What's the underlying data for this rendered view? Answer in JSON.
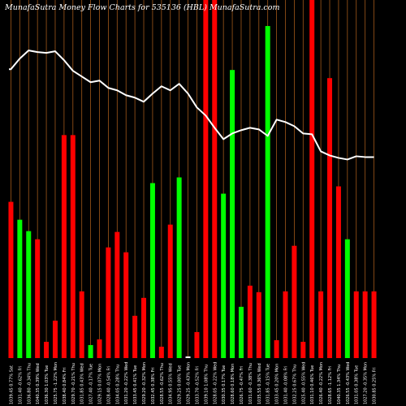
{
  "header": {
    "title": "MunafaSutra  Money Flow  Charts for 535136                    (HBL)  MunafaSutra.com"
  },
  "chart_data": {
    "type": "bar",
    "ylim": [
      0,
      440
    ],
    "line_ylim": [
      0,
      440
    ],
    "grid": "vertical",
    "categories": [
      "1039.45 0.77% Sat",
      "1031.40 -0.62% Fri",
      "1036.80 -0.34% Thu",
      "1040.35 0.39% Wed",
      "1036.30 1.03% Tue",
      "1025.75 -1.22% Mon",
      "1038.40 0.84% Fri",
      "1029.70 -0.21% Thu",
      "1031.85 0.43% Wed",
      "1027.40 -0.17% Tue",
      "1029.15 0.07% Mon",
      "1028.40 -0.54% Fri",
      "1034.05 0.28% Thu",
      "1031.20 -0.22% Wed",
      "1033.45 0.41% Tue",
      "1029.20 -0.32% Mon",
      "1032.45 0.38% Fri",
      "1028.55 -0.62% Thu",
      "1034.95 0.55% Wed",
      "1029.25 0.00% Tue",
      "1029.25 -0.43% Mon",
      "1033.70 -0.52% Fri",
      "1039.10 1.08% Thu",
      "1028.05 -0.22% Wed",
      "1030.35 0.17% Tue",
      "1028.60 0.18% Mon",
      "1026.75 -0.47% Fri",
      "1031.60 -0.38% Thu",
      "1035.55 0.36% Wed",
      "1031.85 -0.15% Tue",
      "1033.45 0.20% Mon",
      "1031.40 -0.08% Fri",
      "1032.25 0.67% Thu",
      "1025.40 -0.55% Wed",
      "1031.10 0.46% Tue",
      "1026.40 -0.22% Mon",
      "1028.65 -1.12% Fri",
      "1040.35 1.34% Thu",
      "1026.55 -0.43% Wed",
      "1031.05 0.38% Tue",
      "1027.20 -0.35% Mon",
      "1030.85 0.25% Fri"
    ],
    "series": [
      {
        "values": [
          192,
          170,
          156,
          146,
          20,
          46,
          274,
          274,
          82,
          16,
          23,
          136,
          155,
          130,
          52,
          74,
          215,
          14,
          164,
          222,
          2,
          32,
          440,
          440,
          202,
          354,
          63,
          89,
          81,
          408,
          22,
          82,
          138,
          20,
          440,
          82,
          344,
          211,
          146,
          82,
          82,
          82
        ],
        "colors": [
          "red",
          "green",
          "green",
          "red",
          "red",
          "red",
          "red",
          "red",
          "red",
          "green",
          "red",
          "red",
          "red",
          "red",
          "red",
          "red",
          "green",
          "red",
          "red",
          "green",
          "white",
          "red",
          "red",
          "red",
          "green",
          "green",
          "green",
          "red",
          "red",
          "green",
          "red",
          "red",
          "red",
          "red",
          "red",
          "red",
          "red",
          "red",
          "green",
          "red",
          "red",
          "red"
        ]
      },
      {
        "values": [
          355,
          368,
          378,
          376,
          375,
          377,
          366,
          353,
          346,
          339,
          341,
          332,
          329,
          323,
          320,
          315,
          325,
          334,
          329,
          337,
          325,
          308,
          298,
          283,
          269,
          276,
          280,
          283,
          281,
          273,
          293,
          290,
          285,
          276,
          275,
          254,
          249,
          246,
          244,
          248,
          247,
          247
        ]
      }
    ]
  }
}
